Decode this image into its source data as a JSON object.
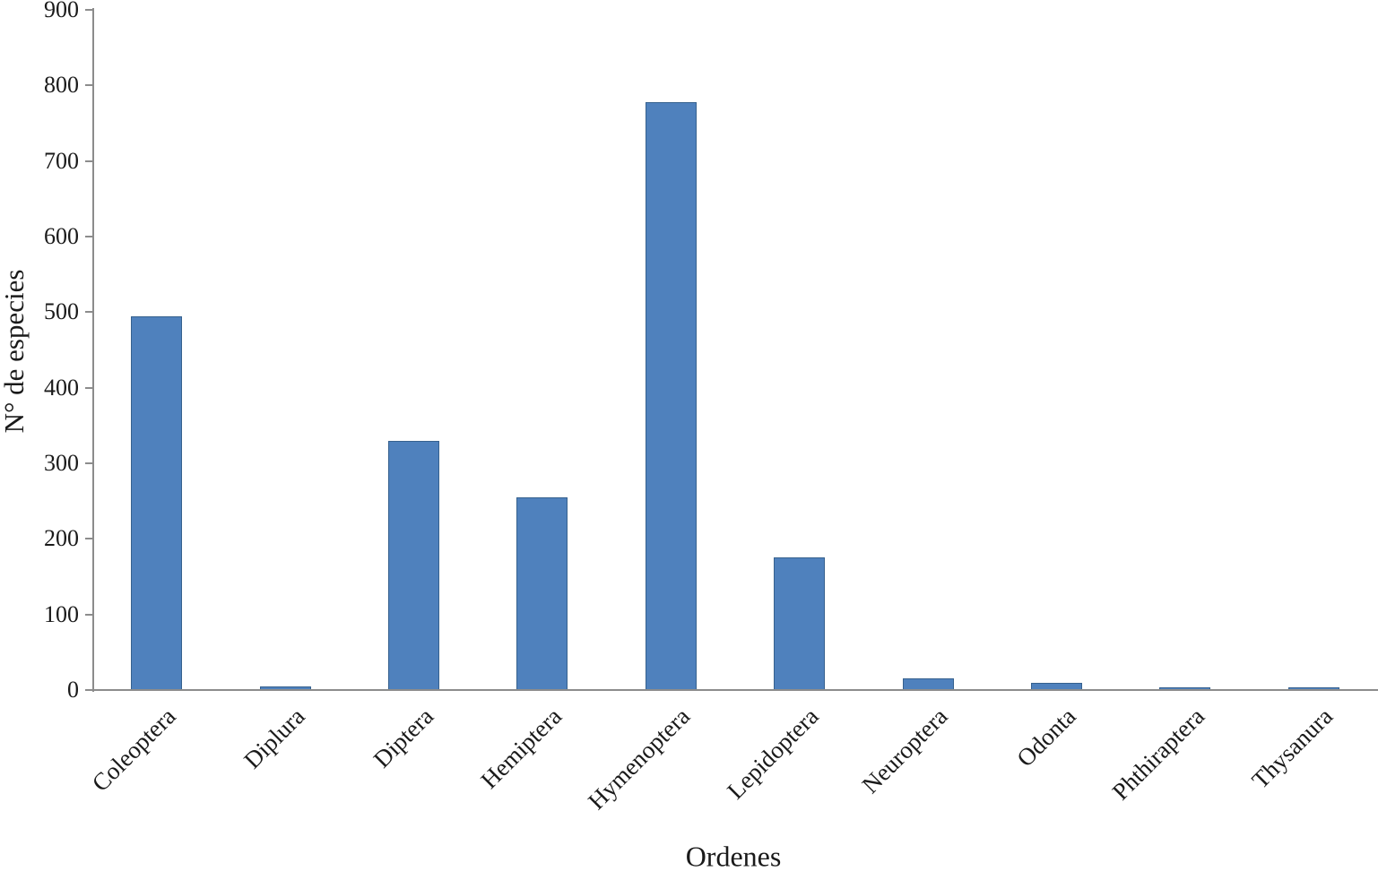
{
  "chart_data": {
    "type": "bar",
    "categories": [
      "Coleoptera",
      "Diplura",
      "Diptera",
      "Hemiptera",
      "Hymenoptera",
      "Lepidoptera",
      "Neuroptera",
      "Odonta",
      "Phthiraptera",
      "Thysanura"
    ],
    "values": [
      495,
      5,
      330,
      255,
      778,
      175,
      16,
      10,
      3,
      3
    ],
    "title": "",
    "xlabel": "Ordenes",
    "ylabel": "N° de especies",
    "ylim": [
      0,
      900
    ],
    "ytick_step": 100,
    "yticks": [
      0,
      100,
      200,
      300,
      400,
      500,
      600,
      700,
      800,
      900
    ],
    "grid": false,
    "legend": "none",
    "colors": {
      "bar_fill": "#4F81BD",
      "bar_border": "#36618E",
      "axis": "#8C8C8C",
      "text": "#1A1A1A"
    }
  }
}
